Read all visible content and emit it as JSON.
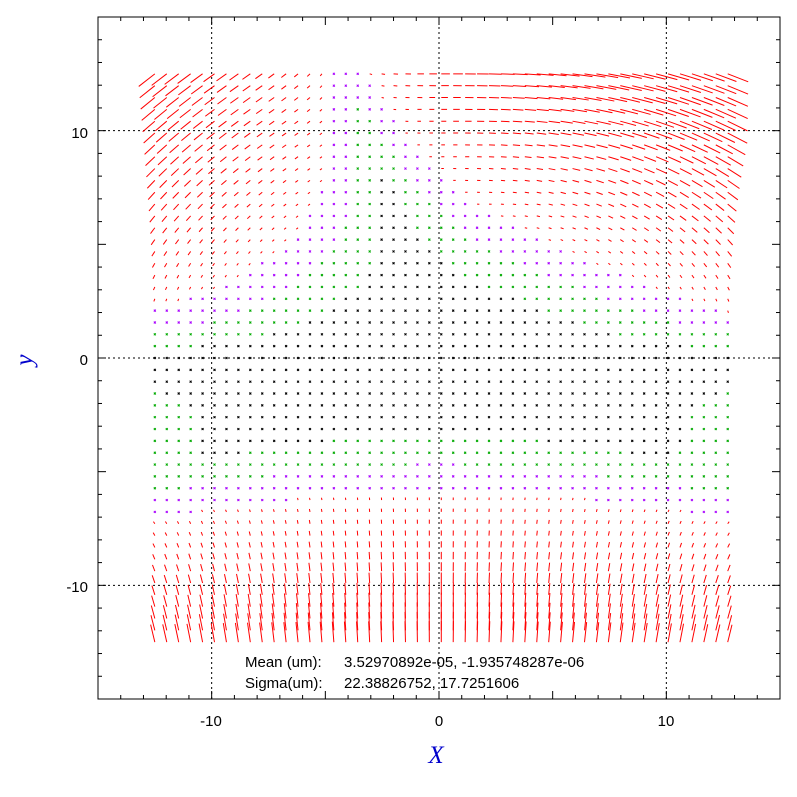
{
  "chart_data": {
    "type": "vector-field",
    "title": "",
    "xlabel": "X",
    "ylabel": "y",
    "xlim": [
      -15,
      15
    ],
    "ylim": [
      -15,
      15
    ],
    "grid": true,
    "grid_values": [
      -10,
      0,
      10
    ],
    "x_ticks": [
      {
        "value": -10,
        "label": "-10"
      },
      {
        "value": 0,
        "label": "0"
      },
      {
        "value": 10,
        "label": "10"
      }
    ],
    "y_ticks": [
      {
        "value": 10,
        "label": "10"
      },
      {
        "value": 0,
        "label": "0"
      },
      {
        "value": -10,
        "label": "-10"
      }
    ],
    "field_extent": {
      "x": [
        -12.5,
        12.7
      ],
      "y": [
        -12.5,
        12.5
      ]
    },
    "colors": {
      "large_vectors": "#ff0000",
      "medium_markers": "#aa00ff",
      "small_markers": "#00aa00",
      "tiny_markers": "#000000",
      "axis_title": "#0000cc",
      "grid": "#000000"
    },
    "annotations": [
      {
        "label": "Mean (um):",
        "values": "3.52970892e-05, -1.935748287e-06"
      },
      {
        "label": "Sigma(um):",
        "values": "22.38826752, 17.7251606"
      }
    ]
  }
}
